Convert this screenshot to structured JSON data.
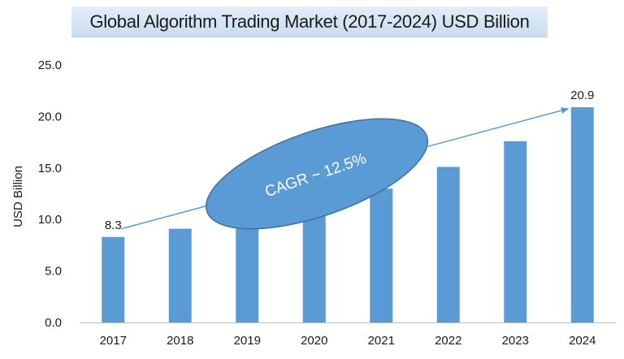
{
  "chart_data": {
    "type": "bar",
    "title": "Global Algorithm Trading Market  (2017-2024) USD Billion",
    "ylabel": "USD Billion",
    "xlabel": "",
    "categories": [
      "2017",
      "2018",
      "2019",
      "2020",
      "2021",
      "2022",
      "2023",
      "2024"
    ],
    "values": [
      8.3,
      9.1,
      10.1,
      11.4,
      13.0,
      15.1,
      17.6,
      20.9
    ],
    "data_labels": {
      "0": "8.3",
      "7": "20.9"
    },
    "ylim": [
      0,
      25
    ],
    "yticks": [
      "0.0",
      "5.0",
      "10.0",
      "15.0",
      "20.0",
      "25.0"
    ],
    "ytick_values": [
      0,
      5,
      10,
      15,
      20,
      25
    ],
    "grid": false,
    "bar_color": "#5b9bd5",
    "annotation": {
      "text": "CAGR ~ 12.5%",
      "shape": "ellipse",
      "fill": "#5b9bd5",
      "stroke": "#41719c",
      "arrow": "trend line from 2017 to 2024"
    }
  }
}
